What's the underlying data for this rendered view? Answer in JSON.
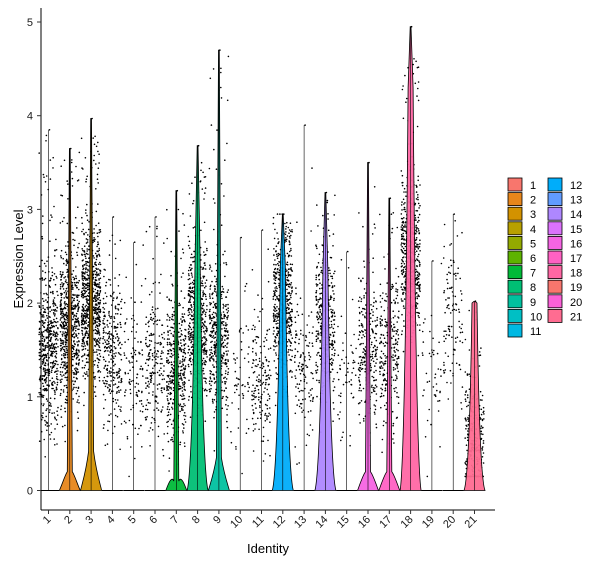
{
  "chart_data": {
    "type": "violin",
    "title": "",
    "xlabel": "Identity",
    "ylabel": "Expression Level",
    "ylim": [
      -0.2,
      5.1
    ],
    "yticks": [
      0,
      1,
      2,
      3,
      4,
      5
    ],
    "grid": false,
    "legend_position": "right",
    "categories": [
      "1",
      "2",
      "3",
      "4",
      "5",
      "6",
      "7",
      "8",
      "9",
      "10",
      "11",
      "12",
      "13",
      "14",
      "15",
      "16",
      "17",
      "18",
      "19",
      "20",
      "21"
    ],
    "colors": [
      "#F8766D",
      "#E7861B",
      "#D39200",
      "#B8A000",
      "#93AA00",
      "#5EB300",
      "#00BA38",
      "#00BF74",
      "#00C19F",
      "#00BFC4",
      "#00B9E3",
      "#00ADFA",
      "#619CFF",
      "#AE87FF",
      "#DB72FB",
      "#F564E3",
      "#FF61C3",
      "#FF67A4",
      "#F8766D",
      "#FB61D7",
      "#FF6C91"
    ],
    "series": [
      {
        "name": "1",
        "max": 3.85,
        "frac": 0.56,
        "center": 1.5,
        "violin_height": 0.0,
        "violin_width": 0.0
      },
      {
        "name": "2",
        "max": 3.65,
        "frac": 0.72,
        "center": 1.7,
        "violin_height": 0.2,
        "violin_width": 0.45
      },
      {
        "name": "3",
        "max": 3.97,
        "frac": 0.82,
        "center": 2.0,
        "violin_height": 0.42,
        "violin_width": 0.6
      },
      {
        "name": "4",
        "max": 2.92,
        "frac": 0.3,
        "center": 1.5,
        "violin_height": 0.0,
        "violin_width": 0.0
      },
      {
        "name": "5",
        "max": 2.65,
        "frac": 0.12,
        "center": 1.2,
        "violin_height": 0.0,
        "violin_width": 0.0
      },
      {
        "name": "6",
        "max": 2.92,
        "frac": 0.22,
        "center": 1.3,
        "violin_height": 0.0,
        "violin_width": 0.0
      },
      {
        "name": "7",
        "max": 3.2,
        "frac": 0.45,
        "center": 1.3,
        "violin_height": 0.1,
        "violin_width": 0.5
      },
      {
        "name": "8",
        "max": 3.68,
        "frac": 0.55,
        "center": 1.8,
        "violin_height": 2.5,
        "violin_width": 0.55
      },
      {
        "name": "9",
        "max": 4.7,
        "frac": 0.5,
        "center": 1.6,
        "violin_height": 0.35,
        "violin_width": 0.55
      },
      {
        "name": "10",
        "max": 2.7,
        "frac": 0.06,
        "center": 1.2,
        "violin_height": 0.0,
        "violin_width": 0.0
      },
      {
        "name": "11",
        "max": 2.78,
        "frac": 0.18,
        "center": 1.2,
        "violin_height": 0.0,
        "violin_width": 0.0
      },
      {
        "name": "12",
        "max": 2.95,
        "frac": 0.52,
        "center": 2.0,
        "violin_height": 2.4,
        "violin_width": 0.55
      },
      {
        "name": "13",
        "max": 3.9,
        "frac": 0.14,
        "center": 1.3,
        "violin_height": 0.0,
        "violin_width": 0.0
      },
      {
        "name": "14",
        "max": 3.18,
        "frac": 0.42,
        "center": 1.8,
        "violin_height": 2.35,
        "violin_width": 0.55
      },
      {
        "name": "15",
        "max": 2.55,
        "frac": 0.06,
        "center": 1.2,
        "violin_height": 0.0,
        "violin_width": 0.0
      },
      {
        "name": "16",
        "max": 3.5,
        "frac": 0.28,
        "center": 1.5,
        "violin_height": 0.2,
        "violin_width": 0.5
      },
      {
        "name": "17",
        "max": 3.12,
        "frac": 0.28,
        "center": 1.5,
        "violin_height": 0.2,
        "violin_width": 0.5
      },
      {
        "name": "18",
        "max": 4.95,
        "frac": 0.6,
        "center": 2.5,
        "violin_height": 4.3,
        "violin_width": 0.6
      },
      {
        "name": "19",
        "max": 2.45,
        "frac": 0.05,
        "center": 1.2,
        "violin_height": 0.0,
        "violin_width": 0.0
      },
      {
        "name": "20",
        "max": 2.95,
        "frac": 0.12,
        "center": 1.8,
        "violin_height": 0.0,
        "violin_width": 0.0
      },
      {
        "name": "21",
        "max": 2.02,
        "frac": 0.3,
        "center": 0.5,
        "violin_height": 2.0,
        "violin_width": 0.5
      }
    ]
  }
}
